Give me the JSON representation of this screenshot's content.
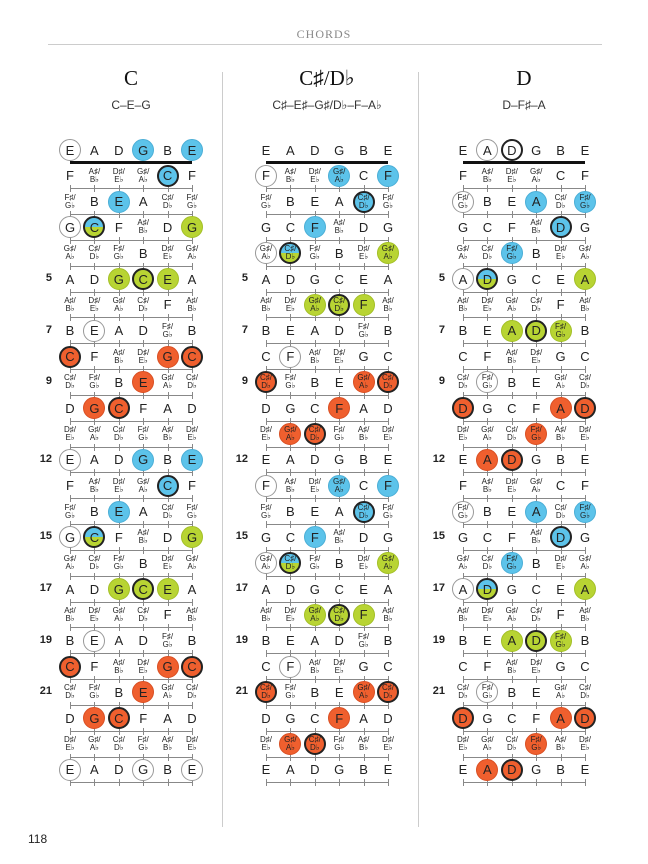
{
  "header": "CHORDS",
  "page_number": "118",
  "tuning": [
    4,
    9,
    2,
    7,
    11,
    4
  ],
  "chromatic": [
    "C",
    "C♯/D♭",
    "D",
    "D♯/E♭",
    "E",
    "F",
    "F♯/G♭",
    "G",
    "G♯/A♭",
    "A",
    "A♯/B♭",
    "B"
  ],
  "fret_numbers": [
    5,
    7,
    9,
    12,
    15,
    17,
    19,
    21
  ],
  "colors": {
    "w": "#ffffff",
    "b": "#5cc3ea",
    "g": "#b8d433",
    "o": "#ef5f2e"
  },
  "chords": [
    {
      "name": "C",
      "notes": "C–E–G",
      "highlights": [
        [
          0,
          0,
          "w",
          0
        ],
        [
          0,
          3,
          "b",
          0
        ],
        [
          0,
          5,
          "b",
          0
        ],
        [
          1,
          4,
          "b",
          1
        ],
        [
          2,
          2,
          "b",
          0
        ],
        [
          3,
          0,
          "w",
          0
        ],
        [
          3,
          1,
          "bg",
          1
        ],
        [
          3,
          5,
          "g",
          0
        ],
        [
          5,
          2,
          "g",
          0
        ],
        [
          5,
          3,
          "g",
          1
        ],
        [
          5,
          4,
          "g",
          0
        ],
        [
          7,
          1,
          "w",
          0
        ],
        [
          8,
          0,
          "o",
          1
        ],
        [
          8,
          4,
          "o",
          0
        ],
        [
          8,
          5,
          "o",
          1
        ],
        [
          9,
          3,
          "o",
          0
        ],
        [
          10,
          1,
          "o",
          0
        ],
        [
          10,
          2,
          "o",
          1
        ],
        [
          12,
          0,
          "w",
          0
        ],
        [
          12,
          3,
          "b",
          0
        ],
        [
          12,
          5,
          "b",
          0
        ],
        [
          13,
          4,
          "b",
          1
        ],
        [
          14,
          2,
          "b",
          0
        ],
        [
          15,
          0,
          "w",
          0
        ],
        [
          15,
          1,
          "bg",
          1
        ],
        [
          15,
          5,
          "g",
          0
        ],
        [
          17,
          2,
          "g",
          0
        ],
        [
          17,
          3,
          "g",
          1
        ],
        [
          17,
          4,
          "g",
          0
        ],
        [
          19,
          1,
          "w",
          0
        ],
        [
          20,
          0,
          "o",
          1
        ],
        [
          20,
          4,
          "o",
          0
        ],
        [
          20,
          5,
          "o",
          1
        ],
        [
          21,
          3,
          "o",
          0
        ],
        [
          22,
          1,
          "o",
          0
        ],
        [
          22,
          2,
          "o",
          1
        ],
        [
          24,
          0,
          "w",
          0
        ],
        [
          24,
          3,
          "w",
          0
        ],
        [
          24,
          5,
          "w",
          0
        ]
      ]
    },
    {
      "name": "C♯/D♭",
      "notes": "C♯–E♯–G♯/D♭–F–A♭",
      "highlights": [
        [
          1,
          0,
          "w",
          0
        ],
        [
          1,
          3,
          "b",
          0
        ],
        [
          1,
          5,
          "b",
          0
        ],
        [
          2,
          4,
          "b",
          1
        ],
        [
          3,
          2,
          "b",
          0
        ],
        [
          4,
          0,
          "w",
          0
        ],
        [
          4,
          1,
          "bg",
          1
        ],
        [
          4,
          5,
          "g",
          0
        ],
        [
          6,
          2,
          "g",
          0
        ],
        [
          6,
          3,
          "g",
          1
        ],
        [
          6,
          4,
          "g",
          0
        ],
        [
          8,
          1,
          "w",
          0
        ],
        [
          9,
          0,
          "o",
          1
        ],
        [
          9,
          4,
          "o",
          0
        ],
        [
          9,
          5,
          "o",
          1
        ],
        [
          10,
          3,
          "o",
          0
        ],
        [
          11,
          1,
          "o",
          0
        ],
        [
          11,
          2,
          "o",
          1
        ],
        [
          13,
          0,
          "w",
          0
        ],
        [
          13,
          3,
          "b",
          0
        ],
        [
          13,
          5,
          "b",
          0
        ],
        [
          14,
          4,
          "b",
          1
        ],
        [
          15,
          2,
          "b",
          0
        ],
        [
          16,
          0,
          "w",
          0
        ],
        [
          16,
          1,
          "bg",
          1
        ],
        [
          16,
          5,
          "g",
          0
        ],
        [
          18,
          2,
          "g",
          0
        ],
        [
          18,
          3,
          "g",
          1
        ],
        [
          18,
          4,
          "g",
          0
        ],
        [
          20,
          1,
          "w",
          0
        ],
        [
          21,
          0,
          "o",
          1
        ],
        [
          21,
          4,
          "o",
          0
        ],
        [
          21,
          5,
          "o",
          1
        ],
        [
          22,
          3,
          "o",
          0
        ],
        [
          23,
          1,
          "o",
          0
        ],
        [
          23,
          2,
          "o",
          1
        ]
      ]
    },
    {
      "name": "D",
      "notes": "D–F♯–A",
      "highlights": [
        [
          0,
          1,
          "w",
          0
        ],
        [
          0,
          2,
          "w",
          1
        ],
        [
          2,
          0,
          "w",
          0
        ],
        [
          2,
          3,
          "b",
          0
        ],
        [
          2,
          5,
          "b",
          0
        ],
        [
          3,
          4,
          "b",
          1
        ],
        [
          4,
          2,
          "b",
          0
        ],
        [
          5,
          0,
          "w",
          0
        ],
        [
          5,
          1,
          "bg",
          1
        ],
        [
          5,
          5,
          "g",
          0
        ],
        [
          7,
          2,
          "g",
          0
        ],
        [
          7,
          3,
          "g",
          1
        ],
        [
          7,
          4,
          "g",
          0
        ],
        [
          9,
          1,
          "w",
          0
        ],
        [
          10,
          0,
          "o",
          1
        ],
        [
          10,
          4,
          "o",
          0
        ],
        [
          10,
          5,
          "o",
          1
        ],
        [
          11,
          3,
          "o",
          0
        ],
        [
          12,
          1,
          "o",
          0
        ],
        [
          12,
          2,
          "o",
          1
        ],
        [
          14,
          0,
          "w",
          0
        ],
        [
          14,
          3,
          "b",
          0
        ],
        [
          14,
          5,
          "b",
          0
        ],
        [
          15,
          4,
          "b",
          1
        ],
        [
          16,
          2,
          "b",
          0
        ],
        [
          17,
          0,
          "w",
          0
        ],
        [
          17,
          1,
          "bg",
          1
        ],
        [
          17,
          5,
          "g",
          0
        ],
        [
          19,
          2,
          "g",
          0
        ],
        [
          19,
          3,
          "g",
          1
        ],
        [
          19,
          4,
          "g",
          0
        ],
        [
          21,
          1,
          "w",
          0
        ],
        [
          22,
          0,
          "o",
          1
        ],
        [
          22,
          4,
          "o",
          0
        ],
        [
          22,
          5,
          "o",
          1
        ],
        [
          23,
          3,
          "o",
          0
        ],
        [
          24,
          1,
          "o",
          0
        ],
        [
          24,
          2,
          "o",
          1
        ]
      ]
    }
  ]
}
